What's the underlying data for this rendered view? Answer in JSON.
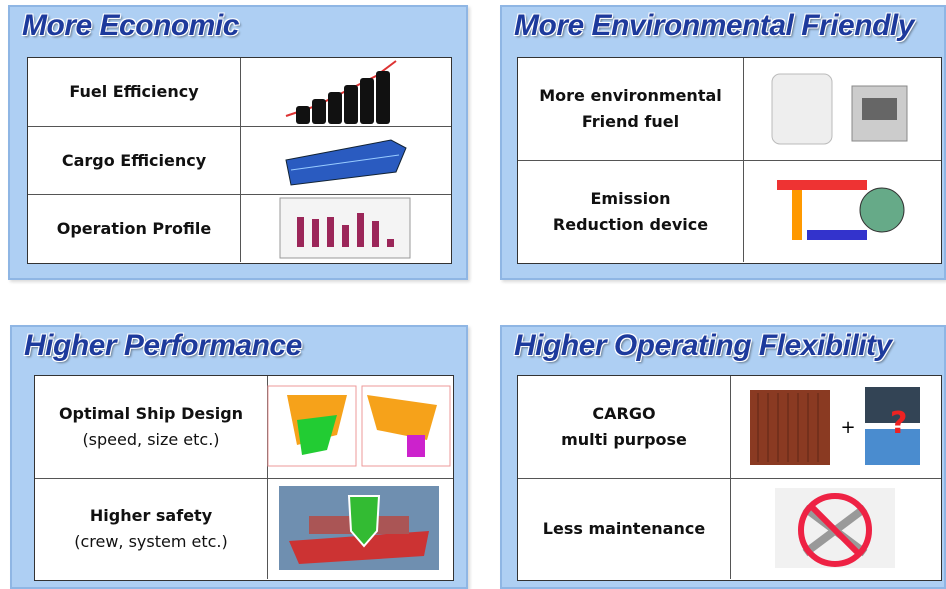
{
  "panels": [
    {
      "title": "More Economic",
      "rows": [
        {
          "lines": [
            "Fuel Efficiency"
          ]
        },
        {
          "lines": [
            "Cargo Efficiency"
          ]
        },
        {
          "lines": [
            "Operation Profile"
          ]
        }
      ]
    },
    {
      "title": "More Environmental Friendly",
      "rows": [
        {
          "lines": [
            "More environmental",
            "Friend fuel"
          ]
        },
        {
          "lines": [
            "Emission",
            "Reduction device"
          ]
        }
      ]
    },
    {
      "title": "Higher Performance",
      "rows": [
        {
          "lines": [
            "Optimal Ship Design"
          ],
          "sub": "(speed, size etc.)"
        },
        {
          "lines": [
            "Higher safety"
          ],
          "sub": "(crew, system etc.)"
        }
      ]
    },
    {
      "title": "Higher Operating Flexibility",
      "rows": [
        {
          "lines": [
            "CARGO",
            "multi purpose"
          ],
          "image_text": "+"
        },
        {
          "lines": [
            "Less maintenance"
          ]
        }
      ]
    }
  ]
}
